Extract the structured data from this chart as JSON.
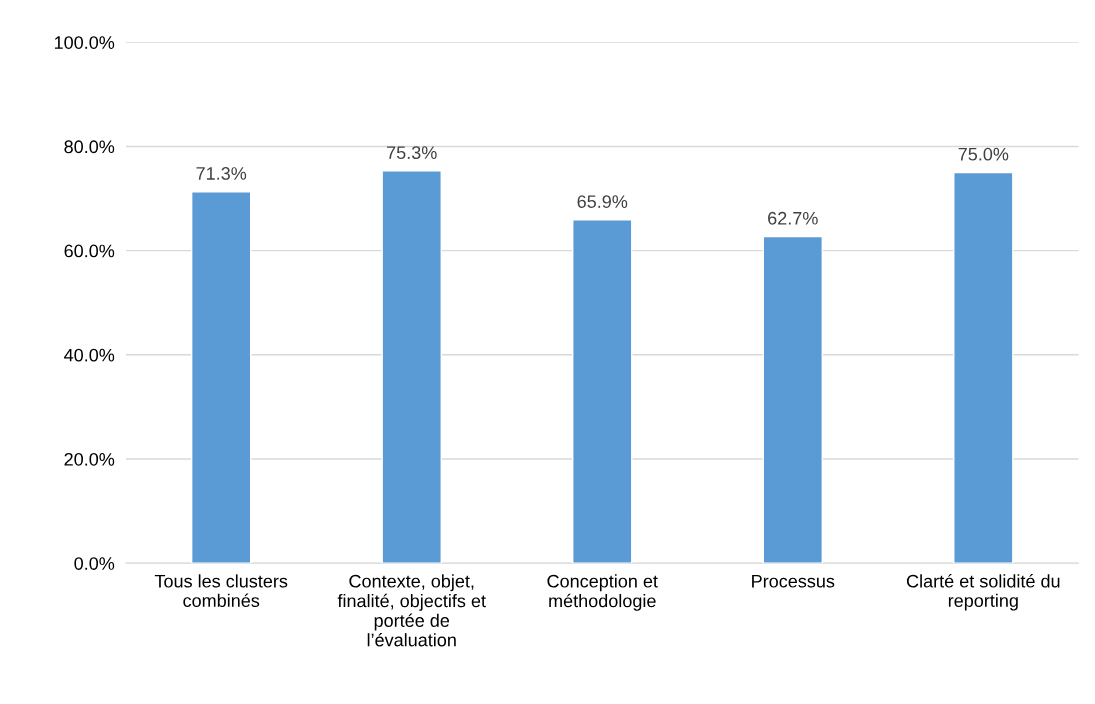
{
  "chart_data": {
    "type": "bar",
    "categories": [
      "Tous les clusters\ncombinés",
      "Contexte, objet,\nfinalité, objectifs et\nportée de\nl’évaluation",
      "Conception et\nméthodologie",
      "Processus",
      "Clarté et solidité du\nreporting"
    ],
    "values": [
      71.3,
      75.3,
      65.9,
      62.7,
      75.0
    ],
    "value_labels": [
      "71.3%",
      "75.3%",
      "65.9%",
      "62.7%",
      "75.0%"
    ],
    "color": "#5b9bd5",
    "ylim": [
      0,
      100
    ],
    "yticks": [
      {
        "value": 0,
        "label": "0.0%"
      },
      {
        "value": 20,
        "label": "20.0%"
      },
      {
        "value": 40,
        "label": "40.0%"
      },
      {
        "value": 60,
        "label": "60.0%"
      },
      {
        "value": 80,
        "label": "80.0%"
      },
      {
        "value": 100,
        "label": "100.0%"
      }
    ],
    "grid": "y"
  }
}
